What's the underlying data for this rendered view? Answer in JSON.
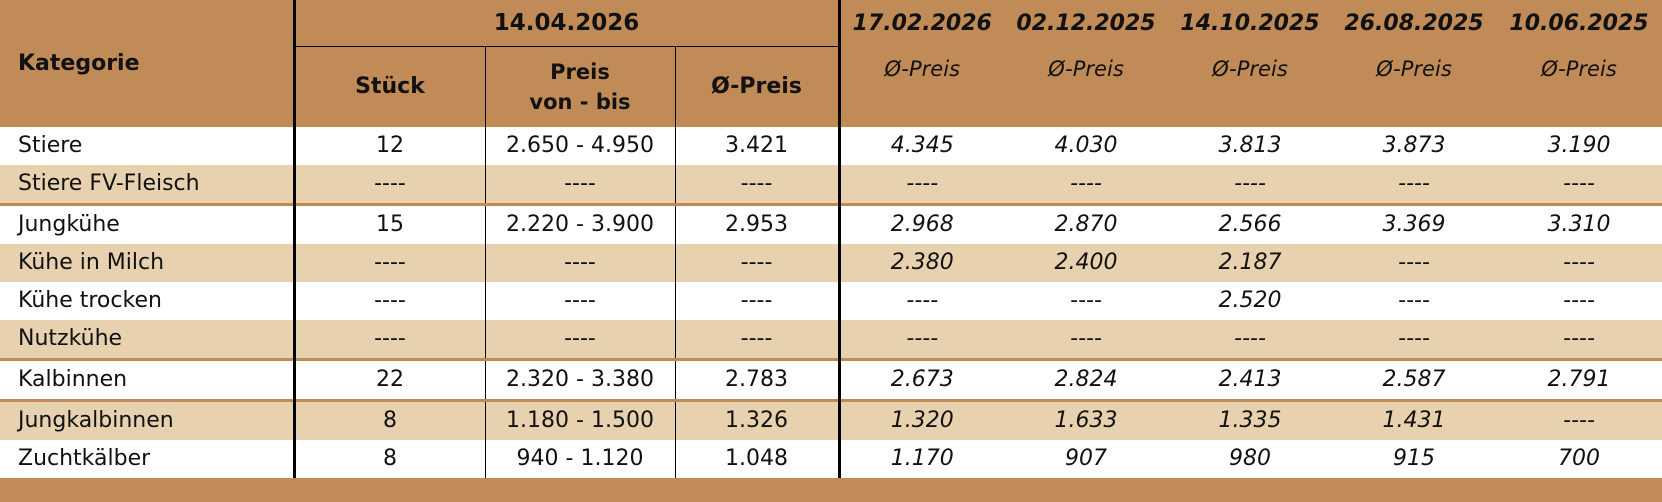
{
  "table": {
    "category_header": "Kategorie",
    "current_date": "14.04.2026",
    "col_stueck": "Stück",
    "col_preis_line1": "Preis",
    "col_preis_line2": "von - bis",
    "col_avg": "Ø-Preis",
    "history_dates": [
      "17.02.2026",
      "02.12.2025",
      "14.10.2025",
      "26.08.2025",
      "10.06.2025"
    ],
    "history_label": "Ø-Preis",
    "rows": [
      {
        "kategorie": "Stiere",
        "stueck": "12",
        "preis": "2.650 - 4.950",
        "avg": "3.421",
        "hist": [
          "4.345",
          "4.030",
          "3.813",
          "3.873",
          "3.190"
        ]
      },
      {
        "kategorie": "Stiere FV-Fleisch",
        "stueck": "----",
        "preis": "----",
        "avg": "----",
        "hist": [
          "----",
          "----",
          "----",
          "----",
          "----"
        ]
      },
      {
        "kategorie": "Jungkühe",
        "stueck": "15",
        "preis": "2.220 - 3.900",
        "avg": "2.953",
        "hist": [
          "2.968",
          "2.870",
          "2.566",
          "3.369",
          "3.310"
        ]
      },
      {
        "kategorie": "Kühe in Milch",
        "stueck": "----",
        "preis": "----",
        "avg": "----",
        "hist": [
          "2.380",
          "2.400",
          "2.187",
          "----",
          "----"
        ]
      },
      {
        "kategorie": "Kühe trocken",
        "stueck": "----",
        "preis": "----",
        "avg": "----",
        "hist": [
          "----",
          "----",
          "2.520",
          "----",
          "----"
        ]
      },
      {
        "kategorie": "Nutzkühe",
        "stueck": "----",
        "preis": "----",
        "avg": "----",
        "hist": [
          "----",
          "----",
          "----",
          "----",
          "----"
        ]
      },
      {
        "kategorie": "Kalbinnen",
        "stueck": "22",
        "preis": "2.320 - 3.380",
        "avg": "2.783",
        "hist": [
          "2.673",
          "2.824",
          "2.413",
          "2.587",
          "2.791"
        ]
      },
      {
        "kategorie": "Jungkalbinnen",
        "stueck": "8",
        "preis": "1.180 - 1.500",
        "avg": "1.326",
        "hist": [
          "1.320",
          "1.633",
          "1.335",
          "1.431",
          "----"
        ]
      },
      {
        "kategorie": "Zuchtkälber",
        "stueck": "8",
        "preis": "940 - 1.120",
        "avg": "1.048",
        "hist": [
          "1.170",
          "907",
          "980",
          "915",
          "700"
        ]
      }
    ]
  },
  "colors": {
    "header_bg": "#c08b57",
    "stripe_bg": "#e8d1ae",
    "row_bg": "#ffffff"
  }
}
